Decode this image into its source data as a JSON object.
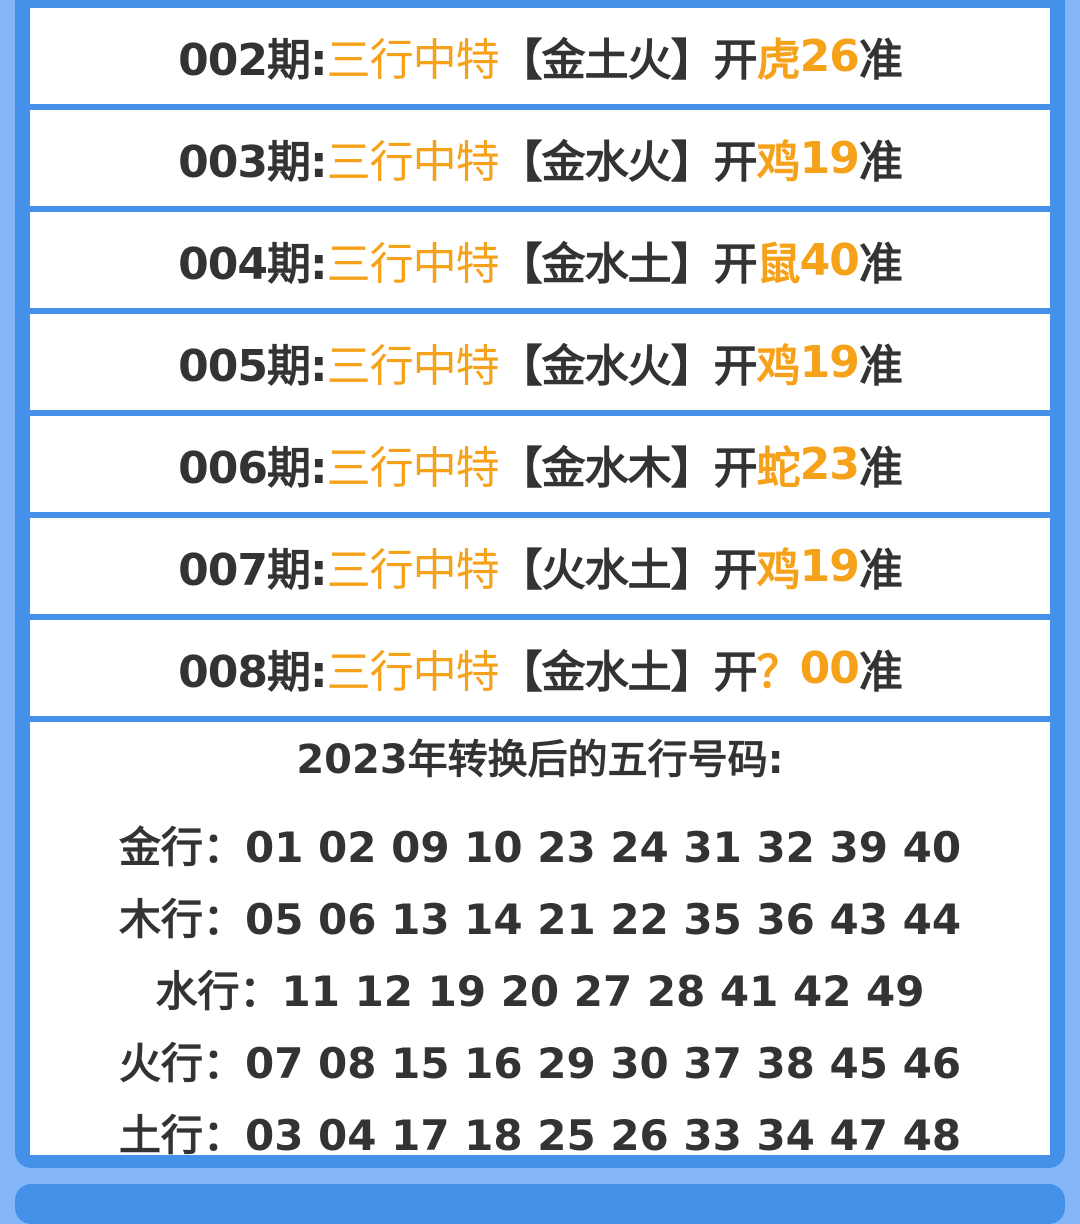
{
  "rows": [
    {
      "period": "002期:",
      "label": "三行中特",
      "elements": "【金土火】",
      "open": "开",
      "animal": "虎",
      "number": "26",
      "suffix": "准"
    },
    {
      "period": "003期:",
      "label": "三行中特",
      "elements": "【金水火】",
      "open": "开",
      "animal": "鸡",
      "number": "19",
      "suffix": "准"
    },
    {
      "period": "004期:",
      "label": "三行中特",
      "elements": "【金水土】",
      "open": "开",
      "animal": "鼠",
      "number": "40",
      "suffix": "准"
    },
    {
      "period": "005期:",
      "label": "三行中特",
      "elements": "【金水火】",
      "open": "开",
      "animal": "鸡",
      "number": "19",
      "suffix": "准"
    },
    {
      "period": "006期:",
      "label": "三行中特",
      "elements": "【金水木】",
      "open": "开",
      "animal": "蛇",
      "number": "23",
      "suffix": "准"
    },
    {
      "period": "007期:",
      "label": "三行中特",
      "elements": "【火水土】",
      "open": "开",
      "animal": "鸡",
      "number": "19",
      "suffix": "准"
    },
    {
      "period": "008期:",
      "label": "三行中特",
      "elements": "【金水土】",
      "open": "开",
      "animal": "？",
      "number": "00",
      "suffix": "准"
    }
  ],
  "table": {
    "title": "2023年转换后的五行号码:",
    "lines": [
      {
        "label": "金行：",
        "numbers": "01 02 09 10 23 24 31 32 39 40"
      },
      {
        "label": "木行：",
        "numbers": "05 06 13 14 21 22 35 36 43 44"
      },
      {
        "label": "水行：",
        "numbers": "11 12 19 20 27 28 41 42 49"
      },
      {
        "label": "火行：",
        "numbers": "07 08 15 16 29 30 37 38 45 46"
      },
      {
        "label": "土行：",
        "numbers": "03 04 17 18 25 26 33 34 47 48"
      }
    ]
  },
  "colors": {
    "accent": "#f6a11a",
    "border": "#4591ea",
    "background": "#84b6f5",
    "text": "#333333"
  }
}
